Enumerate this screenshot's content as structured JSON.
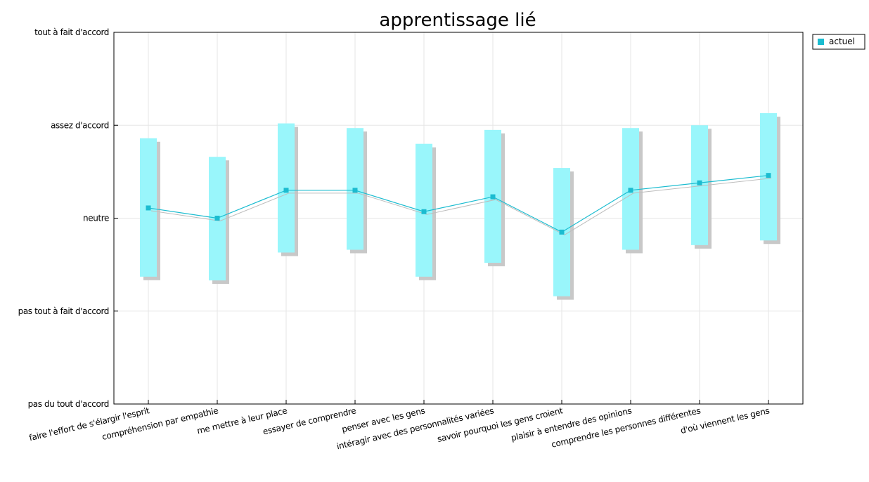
{
  "chart_data": {
    "type": "line",
    "title": "apprentissage lié",
    "y_tick_labels": [
      "pas du tout d'accord",
      "pas tout à fait d'accord",
      "neutre",
      "assez d'accord",
      "tout à fait d'accord"
    ],
    "ylim": [
      1,
      5
    ],
    "categories": [
      "faire l'effort de s'élargir l'esprit",
      "compréhension par empathie",
      "me mettre à leur place",
      "essayer de comprendre",
      "penser avec les gens",
      "intéragir avec des personnalités variées",
      "savoir pourquoi les gens croient",
      "plaisir à entendre des opinions",
      "comprendre les personnes différentes",
      "d'où viennent les gens"
    ],
    "series": [
      {
        "name": "actuel",
        "color": "#1bbcd0",
        "values": [
          3.11,
          3.0,
          3.3,
          3.3,
          3.07,
          3.23,
          2.85,
          3.3,
          3.38,
          3.46
        ],
        "range_low": [
          2.37,
          2.33,
          2.63,
          2.66,
          2.37,
          2.52,
          2.16,
          2.66,
          2.71,
          2.76
        ],
        "range_high": [
          3.86,
          3.66,
          4.02,
          3.97,
          3.8,
          3.95,
          3.54,
          3.97,
          4.0,
          4.13
        ]
      }
    ],
    "grid": true,
    "legend_position": "top-right"
  }
}
